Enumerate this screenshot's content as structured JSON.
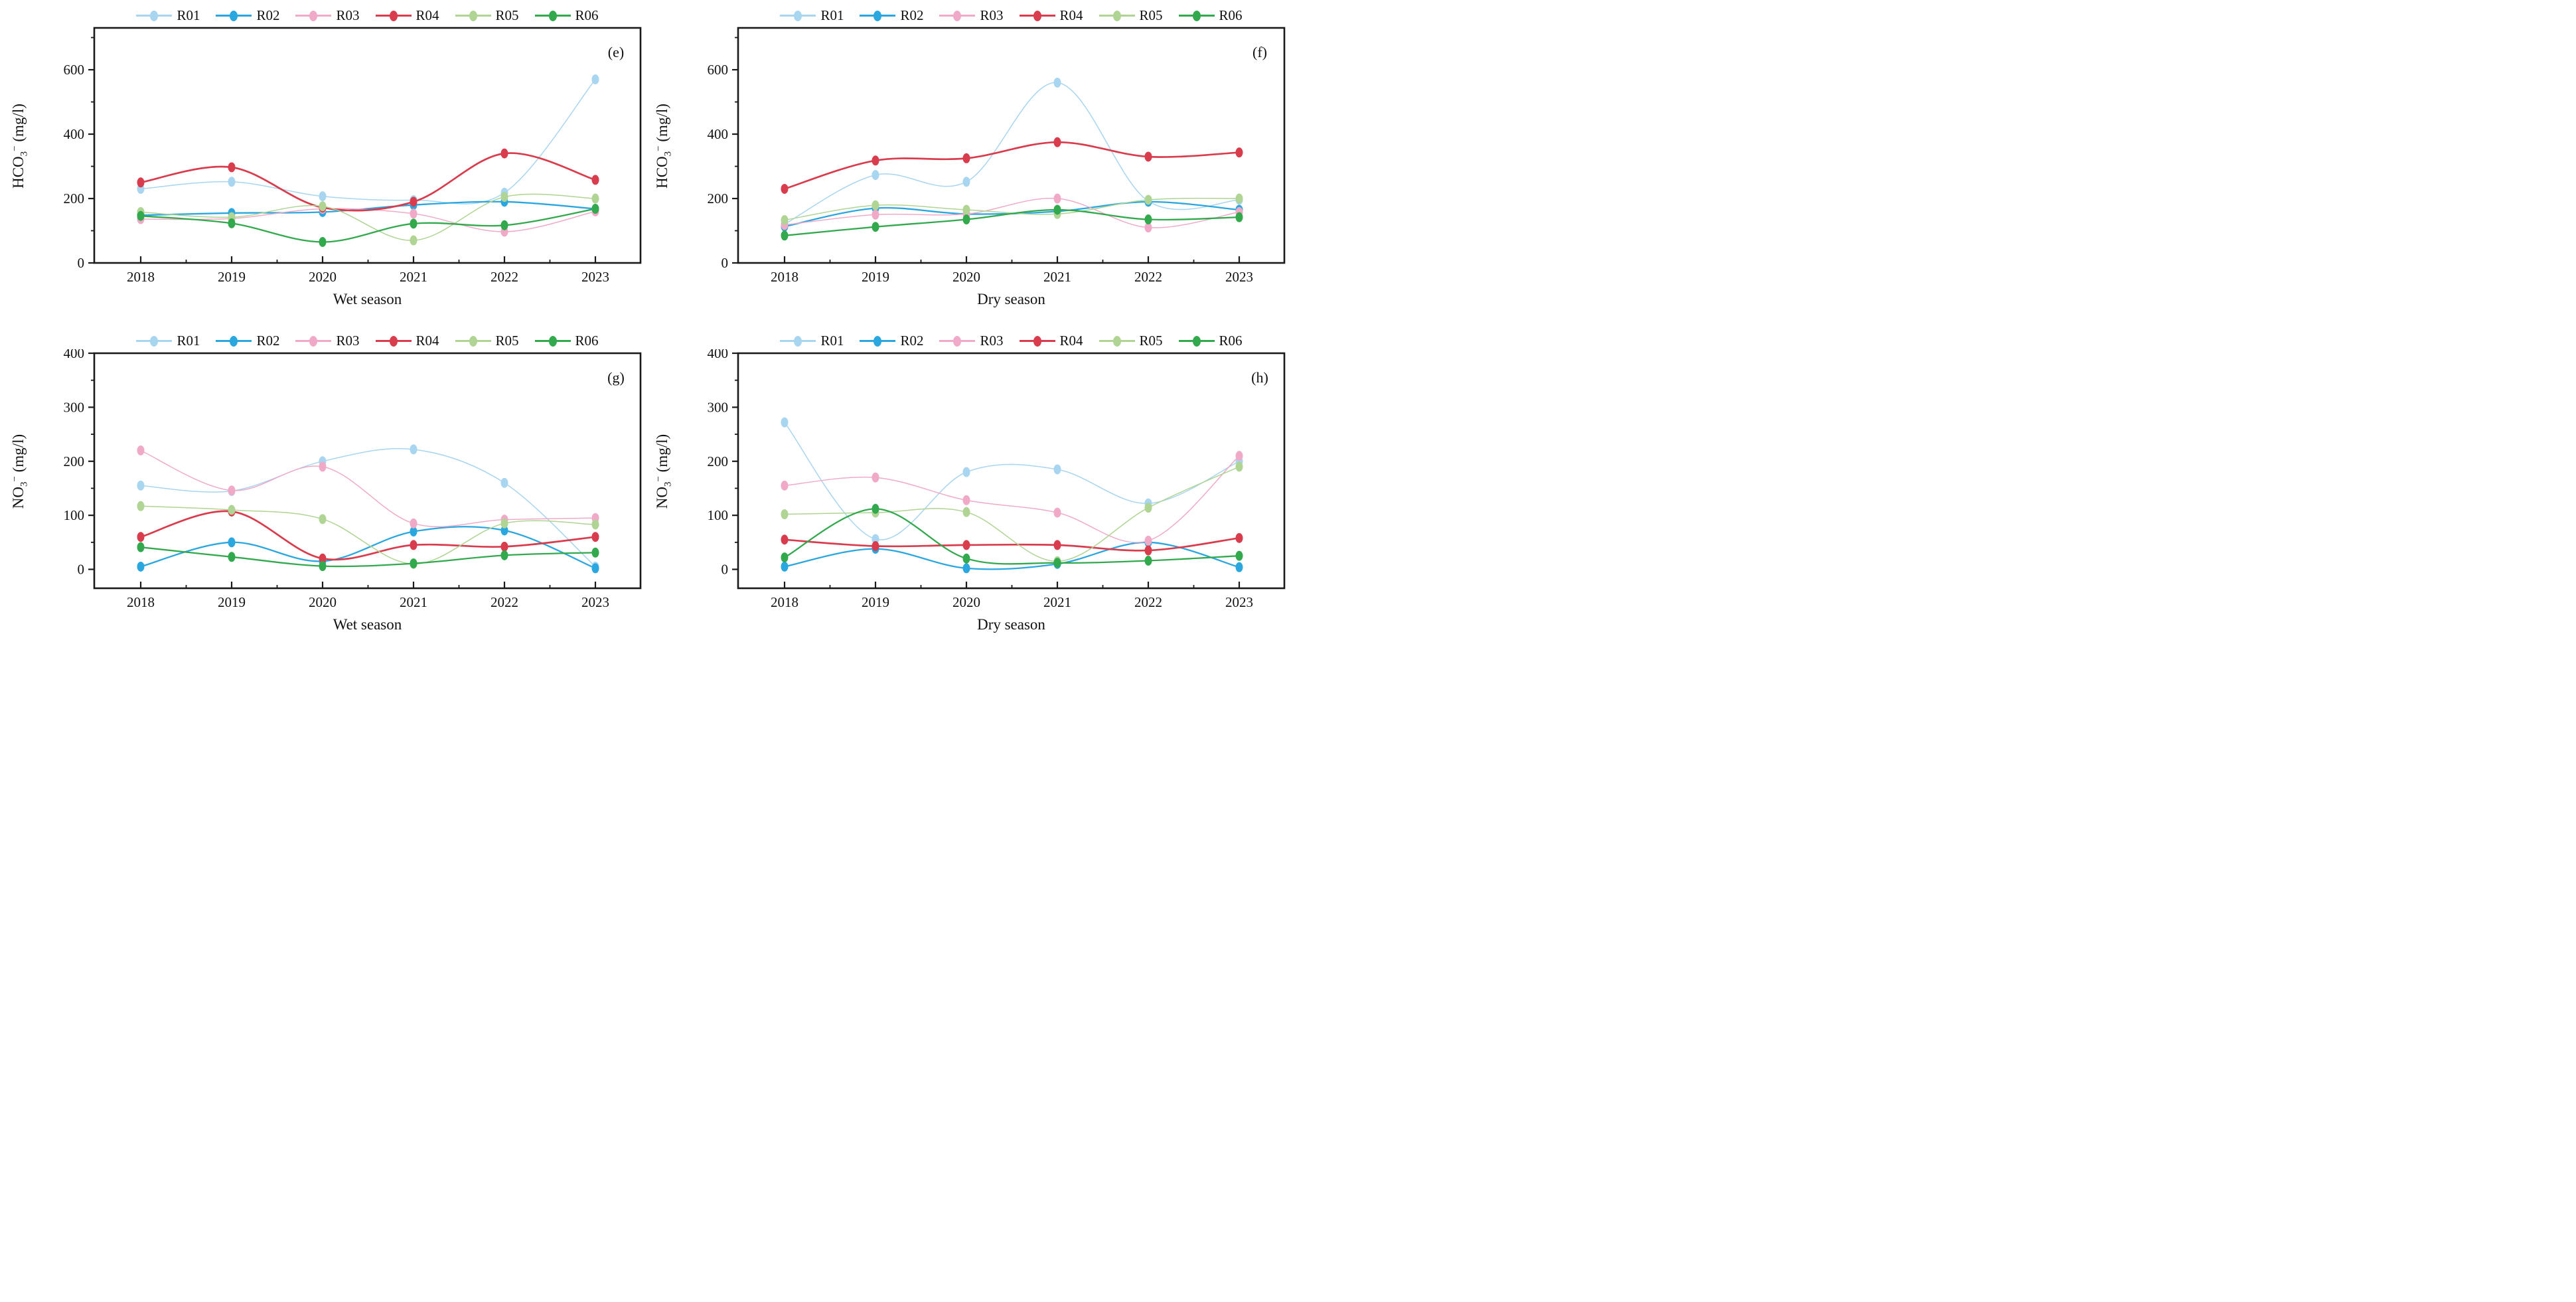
{
  "figure": {
    "background": "#ffffff",
    "axis_color": "#1a1a1a",
    "series_colors": {
      "R01": "#a8d5ef",
      "R02": "#2aa7df",
      "R03": "#f0aac8",
      "R04": "#d93c4d",
      "R05": "#afd493",
      "R06": "#33a94e"
    }
  },
  "chart_data": [
    {
      "id": "e",
      "type": "line",
      "panel_label": "(e)",
      "xlabel": "Wet season",
      "ylabel": {
        "base": "HCO",
        "sub": "3",
        "sup": "−",
        "unit": " (mg/l)"
      },
      "x": [
        2018,
        2019,
        2020,
        2021,
        2022,
        2023
      ],
      "ylim": [
        0,
        730
      ],
      "yticks_major": [
        0,
        200,
        400,
        600
      ],
      "yticks_minor": [
        100,
        300,
        500,
        700
      ],
      "legend_position": "top-center",
      "grid": false,
      "series": [
        {
          "name": "R01",
          "color": "#a8d5ef",
          "values": [
            230,
            252,
            207,
            195,
            218,
            570
          ]
        },
        {
          "name": "R02",
          "color": "#2aa7df",
          "values": [
            148,
            155,
            158,
            180,
            190,
            168
          ]
        },
        {
          "name": "R03",
          "color": "#f0aac8",
          "values": [
            136,
            138,
            168,
            153,
            97,
            160
          ]
        },
        {
          "name": "R04",
          "color": "#d93c4d",
          "values": [
            250,
            297,
            172,
            190,
            340,
            258
          ]
        },
        {
          "name": "R05",
          "color": "#afd493",
          "values": [
            158,
            142,
            176,
            70,
            205,
            200
          ]
        },
        {
          "name": "R06",
          "color": "#33a94e",
          "values": [
            146,
            123,
            65,
            122,
            117,
            168
          ]
        }
      ]
    },
    {
      "id": "f",
      "type": "line",
      "panel_label": "(f)",
      "xlabel": "Dry season",
      "ylabel": {
        "base": "HCO",
        "sub": "3",
        "sup": "−",
        "unit": " (mg/l)"
      },
      "x": [
        2018,
        2019,
        2020,
        2021,
        2022,
        2023
      ],
      "ylim": [
        0,
        730
      ],
      "yticks_major": [
        0,
        200,
        400,
        600
      ],
      "yticks_minor": [
        100,
        300,
        500,
        700
      ],
      "legend_position": "top-center",
      "grid": false,
      "series": [
        {
          "name": "R01",
          "color": "#a8d5ef",
          "values": [
            120,
            273,
            252,
            560,
            192,
            196
          ]
        },
        {
          "name": "R02",
          "color": "#2aa7df",
          "values": [
            113,
            170,
            152,
            160,
            190,
            165
          ]
        },
        {
          "name": "R03",
          "color": "#f0aac8",
          "values": [
            118,
            150,
            152,
            200,
            110,
            158
          ]
        },
        {
          "name": "R04",
          "color": "#d93c4d",
          "values": [
            230,
            318,
            325,
            375,
            330,
            343
          ]
        },
        {
          "name": "R05",
          "color": "#afd493",
          "values": [
            133,
            179,
            165,
            152,
            196,
            200
          ]
        },
        {
          "name": "R06",
          "color": "#33a94e",
          "values": [
            85,
            112,
            135,
            165,
            135,
            142
          ]
        }
      ]
    },
    {
      "id": "g",
      "type": "line",
      "panel_label": "(g)",
      "xlabel": "Wet season",
      "ylabel": {
        "base": "NO",
        "sub": "3",
        "sup": "−",
        "unit": " (mg/l)"
      },
      "x": [
        2018,
        2019,
        2020,
        2021,
        2022,
        2023
      ],
      "ylim": [
        -35,
        400
      ],
      "yticks_major": [
        0,
        100,
        200,
        300,
        400
      ],
      "yticks_minor": [
        50,
        150,
        250,
        350
      ],
      "legend_position": "top-center",
      "grid": false,
      "series": [
        {
          "name": "R01",
          "color": "#a8d5ef",
          "values": [
            155,
            145,
            200,
            222,
            160,
            5
          ]
        },
        {
          "name": "R02",
          "color": "#2aa7df",
          "values": [
            5,
            50,
            15,
            70,
            72,
            2
          ]
        },
        {
          "name": "R03",
          "color": "#f0aac8",
          "values": [
            220,
            146,
            190,
            85,
            92,
            95
          ]
        },
        {
          "name": "R04",
          "color": "#d93c4d",
          "values": [
            60,
            107,
            20,
            45,
            42,
            60
          ]
        },
        {
          "name": "R05",
          "color": "#afd493",
          "values": [
            117,
            110,
            93,
            10,
            85,
            83
          ]
        },
        {
          "name": "R06",
          "color": "#33a94e",
          "values": [
            41,
            23,
            6,
            11,
            26,
            31
          ]
        }
      ]
    },
    {
      "id": "h",
      "type": "line",
      "panel_label": "(h)",
      "xlabel": "Dry season",
      "ylabel": {
        "base": "NO",
        "sub": "3",
        "sup": "−",
        "unit": " (mg/l)"
      },
      "x": [
        2018,
        2019,
        2020,
        2021,
        2022,
        2023
      ],
      "ylim": [
        -35,
        400
      ],
      "yticks_major": [
        0,
        100,
        200,
        300,
        400
      ],
      "yticks_minor": [
        50,
        150,
        250,
        350
      ],
      "legend_position": "top-center",
      "grid": false,
      "series": [
        {
          "name": "R01",
          "color": "#a8d5ef",
          "values": [
            272,
            56,
            180,
            185,
            122,
            200
          ]
        },
        {
          "name": "R02",
          "color": "#2aa7df",
          "values": [
            5,
            38,
            2,
            10,
            50,
            4
          ]
        },
        {
          "name": "R03",
          "color": "#f0aac8",
          "values": [
            155,
            170,
            128,
            105,
            53,
            210
          ]
        },
        {
          "name": "R04",
          "color": "#d93c4d",
          "values": [
            55,
            43,
            45,
            45,
            35,
            58
          ]
        },
        {
          "name": "R05",
          "color": "#afd493",
          "values": [
            102,
            105,
            106,
            15,
            114,
            190
          ]
        },
        {
          "name": "R06",
          "color": "#33a94e",
          "values": [
            22,
            112,
            20,
            12,
            16,
            25
          ]
        }
      ]
    }
  ]
}
